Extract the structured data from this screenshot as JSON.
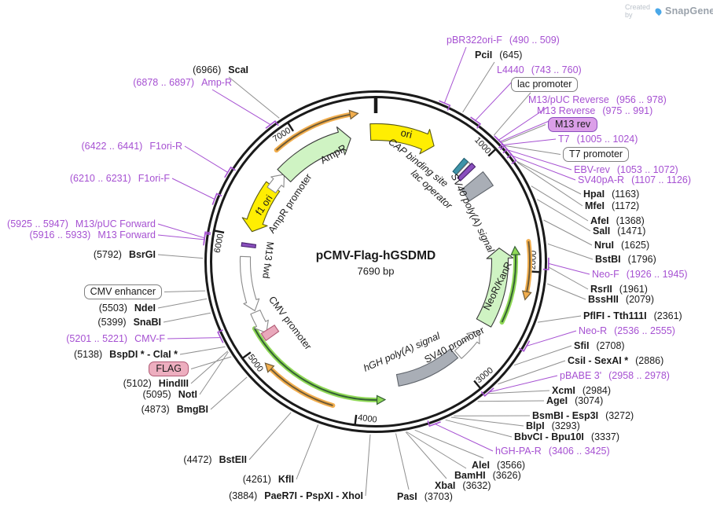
{
  "watermark": {
    "created_by": "Created by",
    "brand": "SnapGene"
  },
  "plasmid": {
    "name": "pCMV-Flag-hGSDMD",
    "size": "7690 bp"
  },
  "ticks": [
    {
      "bp": 1000,
      "label": "1000"
    },
    {
      "bp": 2000,
      "label": "2000"
    },
    {
      "bp": 3000,
      "label": "3000"
    },
    {
      "bp": 4000,
      "label": "4000"
    },
    {
      "bp": 5000,
      "label": "5000"
    },
    {
      "bp": 6000,
      "label": "6000"
    },
    {
      "bp": 7000,
      "label": "7000"
    }
  ],
  "inner_labels": {
    "ampr": "AmpR",
    "ampr_promoter": "AmpR promoter",
    "f1_ori": "f1 ori",
    "ori": "ori",
    "cap": "CAP binding site",
    "lac_operator": "lac operator",
    "sv40_polya": "SV40 poly(A) signal",
    "neor_kanr": "NeoR/KanR",
    "sv40_promoter": "SV40 promoter",
    "hgh_polya": "hGH poly(A) signal",
    "cmv_promoter": "CMV promoter",
    "m13_fwd": "M13 fwd"
  },
  "labels": [
    {
      "name": "ScaI",
      "pos": "(6966)",
      "kind": "enzyme"
    },
    {
      "name": "Amp-R",
      "pos": "(6878 .. 6897)",
      "kind": "primer"
    },
    {
      "name": "F1ori-R",
      "pos": "(6422 .. 6441)",
      "kind": "primer"
    },
    {
      "name": "F1ori-F",
      "pos": "(6210 .. 6231)",
      "kind": "primer"
    },
    {
      "name": "M13/pUC Forward",
      "pos": "(5925 .. 5947)",
      "kind": "primer"
    },
    {
      "name": "M13 Forward",
      "pos": "(5916 .. 5933)",
      "kind": "primer"
    },
    {
      "name": "BsrGI",
      "pos": "(5792)",
      "kind": "enzyme"
    },
    {
      "name": "CMV enhancer",
      "pos": "",
      "kind": "boxed"
    },
    {
      "name": "NdeI",
      "pos": "(5503)",
      "kind": "enzyme"
    },
    {
      "name": "SnaBI",
      "pos": "(5399)",
      "kind": "enzyme"
    },
    {
      "name": "CMV-F",
      "pos": "(5201 .. 5221)",
      "kind": "primer"
    },
    {
      "name": "BspDI * - ClaI *",
      "pos": "(5138)",
      "kind": "enzyme"
    },
    {
      "name": "FLAG",
      "pos": "",
      "kind": "chip"
    },
    {
      "name": "HindIII",
      "pos": "(5102)",
      "kind": "enzyme"
    },
    {
      "name": "NotI",
      "pos": "(5095)",
      "kind": "enzyme"
    },
    {
      "name": "BmgBI",
      "pos": "(4873)",
      "kind": "enzyme"
    },
    {
      "name": "BstEII",
      "pos": "(4472)",
      "kind": "enzyme"
    },
    {
      "name": "KflI",
      "pos": "(4261)",
      "kind": "enzyme"
    },
    {
      "name": "PaeR7I - PspXI - XhoI",
      "pos": "(3884)",
      "kind": "enzyme"
    },
    {
      "name": "pBR322ori-F",
      "pos": "(490 .. 509)",
      "kind": "primer"
    },
    {
      "name": "PciI",
      "pos": "(645)",
      "kind": "enzyme"
    },
    {
      "name": "L4440",
      "pos": "(743 .. 760)",
      "kind": "primer"
    },
    {
      "name": "lac promoter",
      "pos": "",
      "kind": "boxed"
    },
    {
      "name": "M13/pUC Reverse",
      "pos": "(956 .. 978)",
      "kind": "primer"
    },
    {
      "name": "M13 Reverse",
      "pos": "(975 .. 991)",
      "kind": "primer"
    },
    {
      "name": "M13 rev",
      "pos": "",
      "kind": "chip"
    },
    {
      "name": "T7",
      "pos": "(1005 .. 1024)",
      "kind": "primer"
    },
    {
      "name": "T7 promoter",
      "pos": "",
      "kind": "boxed"
    },
    {
      "name": "EBV-rev",
      "pos": "(1053 .. 1072)",
      "kind": "primer"
    },
    {
      "name": "SV40pA-R",
      "pos": "(1107 .. 1126)",
      "kind": "primer"
    },
    {
      "name": "HpaI",
      "pos": "(1163)",
      "kind": "enzyme"
    },
    {
      "name": "MfeI",
      "pos": "(1172)",
      "kind": "enzyme"
    },
    {
      "name": "AfeI",
      "pos": "(1368)",
      "kind": "enzyme"
    },
    {
      "name": "SalI",
      "pos": "(1471)",
      "kind": "enzyme"
    },
    {
      "name": "NruI",
      "pos": "(1625)",
      "kind": "enzyme"
    },
    {
      "name": "BstBI",
      "pos": "(1796)",
      "kind": "enzyme"
    },
    {
      "name": "Neo-F",
      "pos": "(1926 .. 1945)",
      "kind": "primer"
    },
    {
      "name": "RsrII",
      "pos": "(1961)",
      "kind": "enzyme"
    },
    {
      "name": "BssHII",
      "pos": "(2079)",
      "kind": "enzyme"
    },
    {
      "name": "PflFI - Tth111I",
      "pos": "(2361)",
      "kind": "enzyme"
    },
    {
      "name": "Neo-R",
      "pos": "(2536 .. 2555)",
      "kind": "primer"
    },
    {
      "name": "SfiI",
      "pos": "(2708)",
      "kind": "enzyme"
    },
    {
      "name": "CsiI - SexAI *",
      "pos": "(2886)",
      "kind": "enzyme"
    },
    {
      "name": "pBABE 3'",
      "pos": "(2958 .. 2978)",
      "kind": "primer"
    },
    {
      "name": "XcmI",
      "pos": "(2984)",
      "kind": "enzyme"
    },
    {
      "name": "AgeI",
      "pos": "(3074)",
      "kind": "enzyme"
    },
    {
      "name": "BsmBI - Esp3I",
      "pos": "(3272)",
      "kind": "enzyme"
    },
    {
      "name": "BlpI",
      "pos": "(3293)",
      "kind": "enzyme"
    },
    {
      "name": "BbvCI - Bpu10I",
      "pos": "(3337)",
      "kind": "enzyme"
    },
    {
      "name": "hGH-PA-R",
      "pos": "(3406 .. 3425)",
      "kind": "primer"
    },
    {
      "name": "AleI",
      "pos": "(3566)",
      "kind": "enzyme"
    },
    {
      "name": "BamHI",
      "pos": "(3626)",
      "kind": "enzyme"
    },
    {
      "name": "XbaI",
      "pos": "(3632)",
      "kind": "enzyme"
    },
    {
      "name": "PasI",
      "pos": "(3703)",
      "kind": "enzyme"
    }
  ],
  "colors": {
    "primer_purple": "#A651D2",
    "enzyme_black": "#1a1a1a",
    "leader_gray": "#8f8f8f",
    "ring_black": "#1a1a1a",
    "feature_green": "#cff3c3",
    "feature_yellow": "#ffee02",
    "feature_orange": "#f2ae4e",
    "orange_core": "#6e5a35",
    "orf_green": "#90d957",
    "green_core": "#356135",
    "gray_feature": "#a9aeb6",
    "gray_border": "#5f646b",
    "teal_feature": "#3e93a8",
    "teal_border": "#1d5f70",
    "purple_feature": "#8a4fbe",
    "purple_border": "#4a2470",
    "pink_feature": "#e9a8bb",
    "pink_border": "#b05a74",
    "logo_blue": "#4aa8e8",
    "logo_gray": "#9aa2ab"
  }
}
